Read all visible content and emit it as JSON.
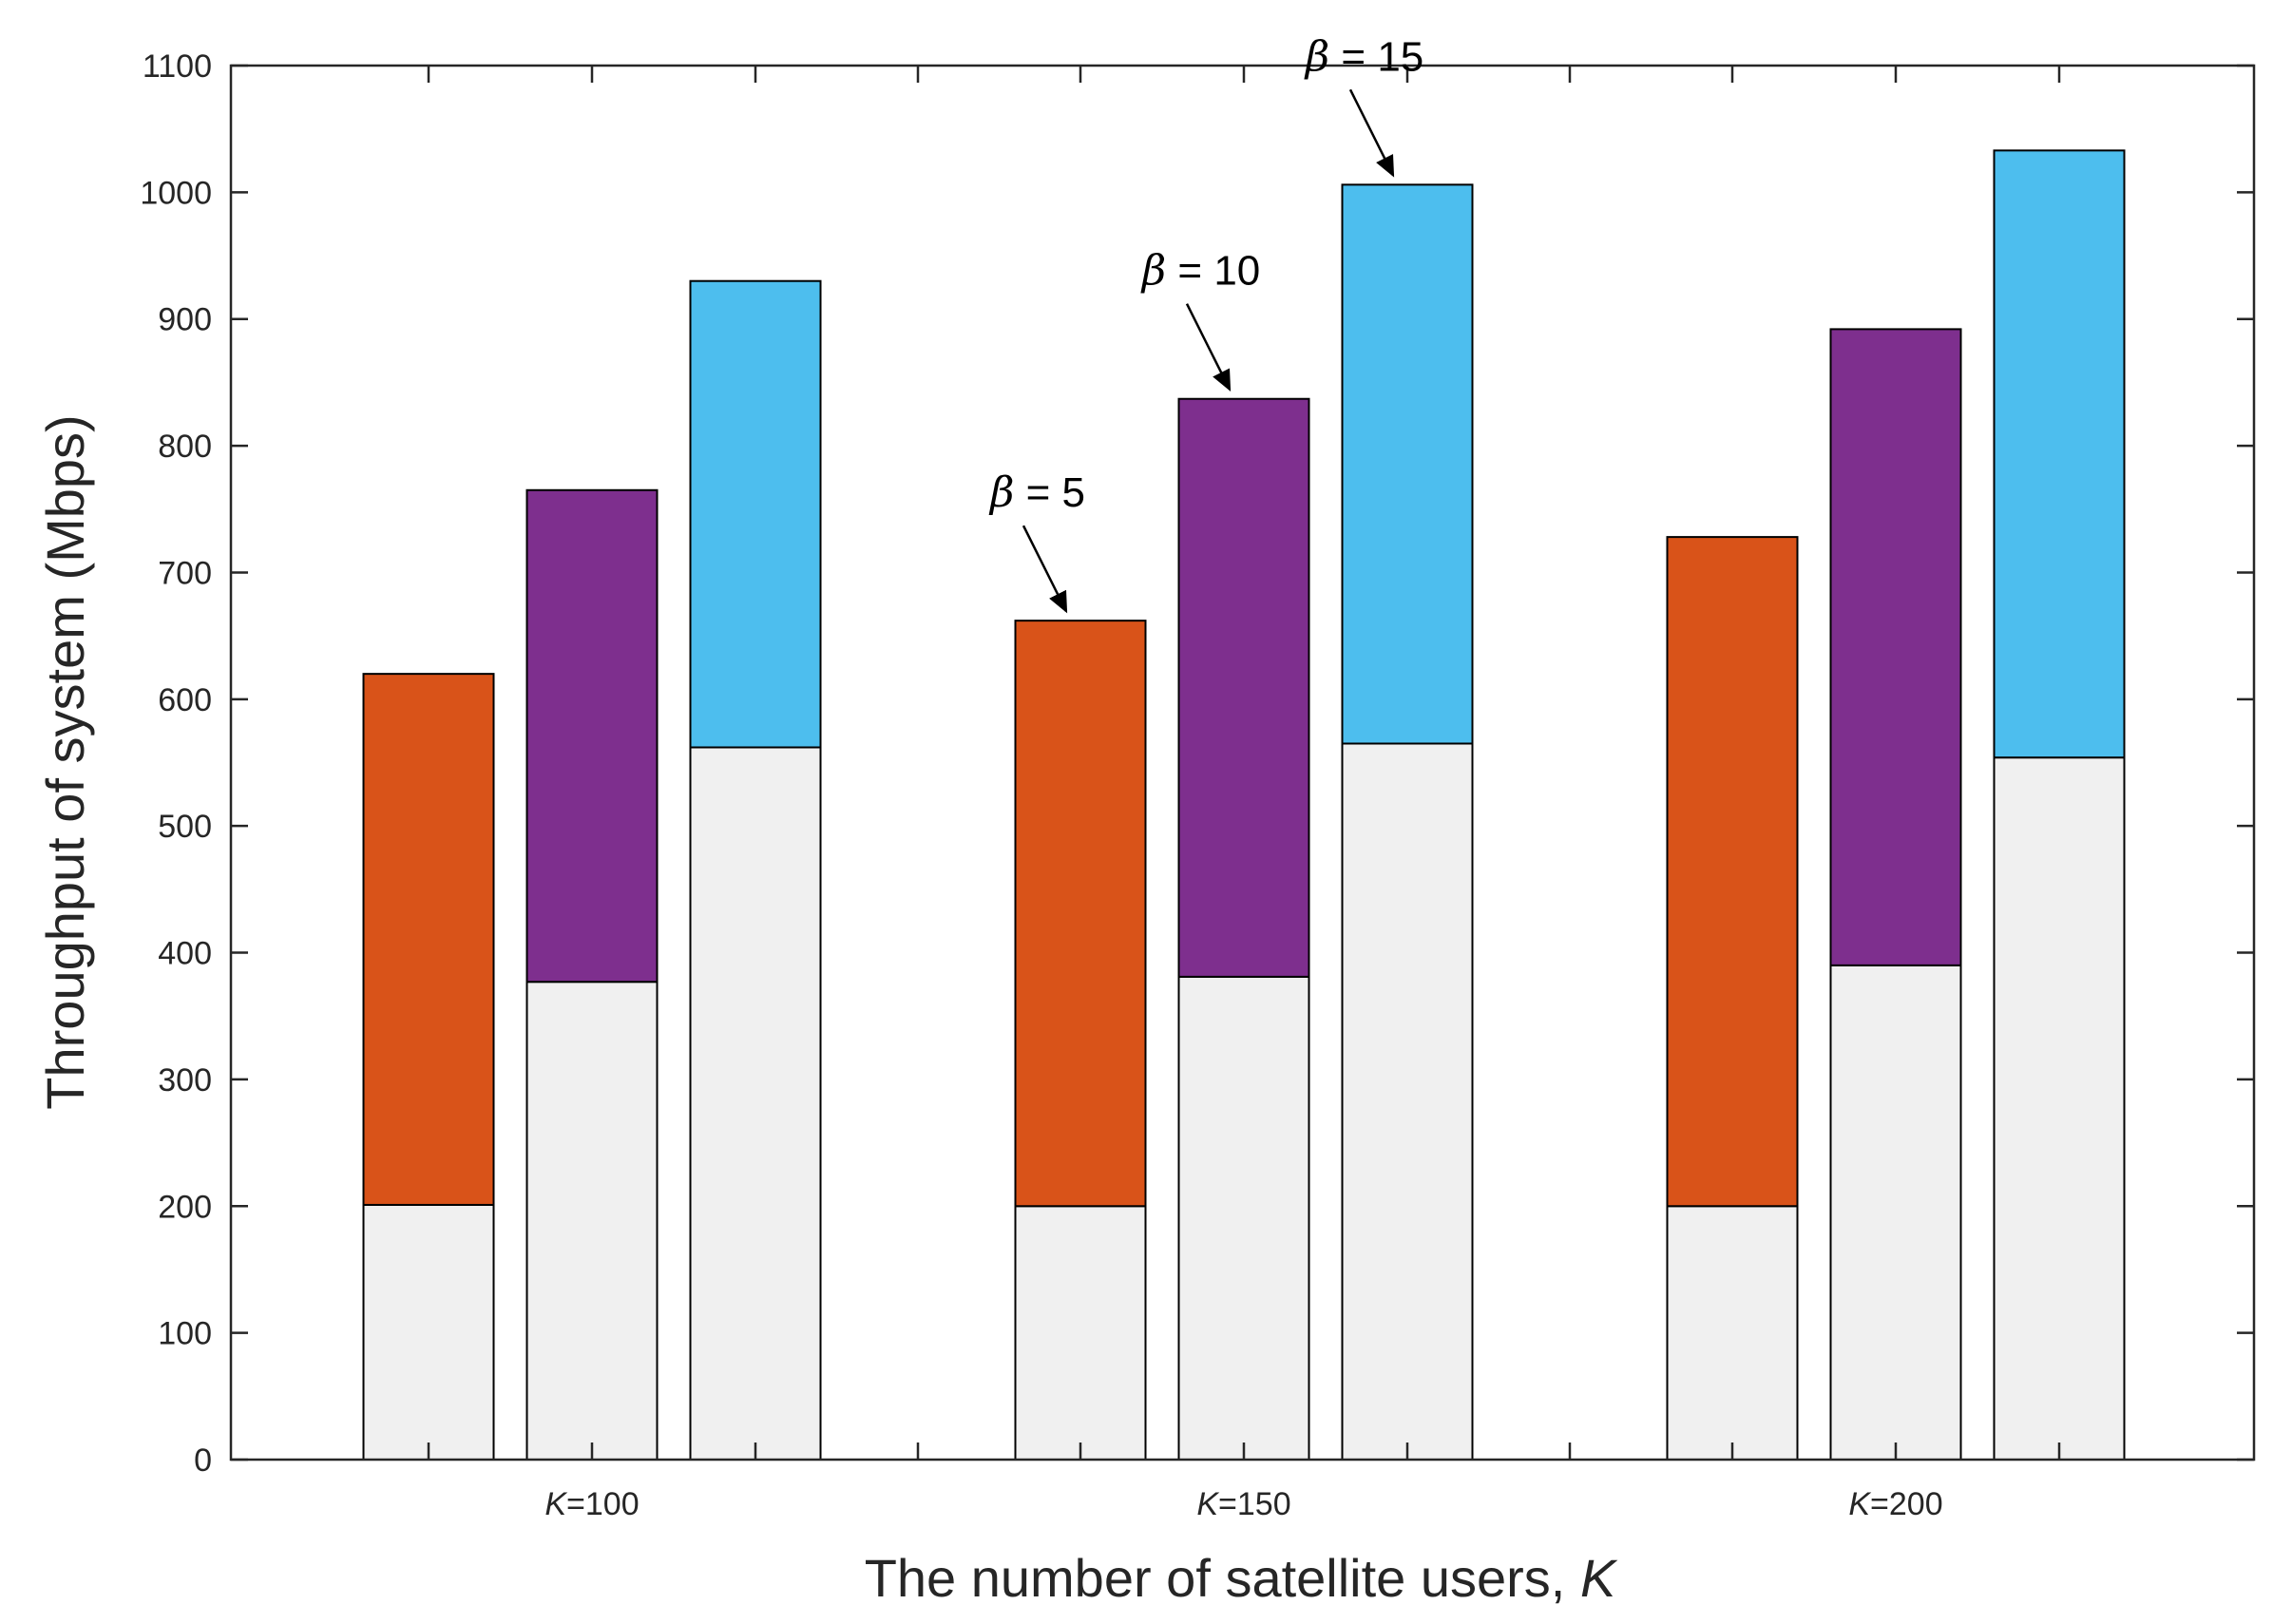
{
  "chart_data": {
    "type": "bar",
    "stacked": true,
    "xlabel": "The number of satellite users, ",
    "xlabel_variable": "K",
    "ylabel": "Throughput of system (Mbps)",
    "ylim": [
      0,
      1100
    ],
    "yticks": [
      0,
      100,
      200,
      300,
      400,
      500,
      600,
      700,
      800,
      900,
      1000,
      1100
    ],
    "groups": [
      {
        "variable": "K",
        "label": "=100"
      },
      {
        "variable": "K",
        "label": "=150"
      },
      {
        "variable": "K",
        "label": "=200"
      }
    ],
    "bars": [
      {
        "group": 0,
        "slot": 0,
        "base": 201,
        "total": 620,
        "series": "beta5"
      },
      {
        "group": 0,
        "slot": 1,
        "base": 377,
        "total": 765,
        "series": "beta10"
      },
      {
        "group": 0,
        "slot": 2,
        "base": 562,
        "total": 930,
        "series": "beta15"
      },
      {
        "group": 1,
        "slot": 0,
        "base": 200,
        "total": 662,
        "series": "beta5"
      },
      {
        "group": 1,
        "slot": 1,
        "base": 381,
        "total": 837,
        "series": "beta10"
      },
      {
        "group": 1,
        "slot": 2,
        "base": 565,
        "total": 1006,
        "series": "beta15"
      },
      {
        "group": 2,
        "slot": 0,
        "base": 200,
        "total": 728,
        "series": "beta5"
      },
      {
        "group": 2,
        "slot": 1,
        "base": 390,
        "total": 892,
        "series": "beta10"
      },
      {
        "group": 2,
        "slot": 2,
        "base": 554,
        "total": 1033,
        "series": "beta15"
      }
    ],
    "series": [
      {
        "id": "beta5",
        "symbol": "β",
        "label": " = 5",
        "color": "#d95319"
      },
      {
        "id": "beta10",
        "symbol": "β",
        "label": " = 10",
        "color": "#7e2f8e"
      },
      {
        "id": "beta15",
        "symbol": "β",
        "label": " = 15",
        "color": "#4dbeee"
      }
    ],
    "base_color": "#f0f0f0",
    "annotations": [
      {
        "symbol": "β",
        "text": " = 5",
        "points_to_bar": 3
      },
      {
        "symbol": "β",
        "text": " = 10",
        "points_to_bar": 4
      },
      {
        "symbol": "β",
        "text": " = 15",
        "points_to_bar": 5
      }
    ],
    "grid": false,
    "legend": "none"
  }
}
